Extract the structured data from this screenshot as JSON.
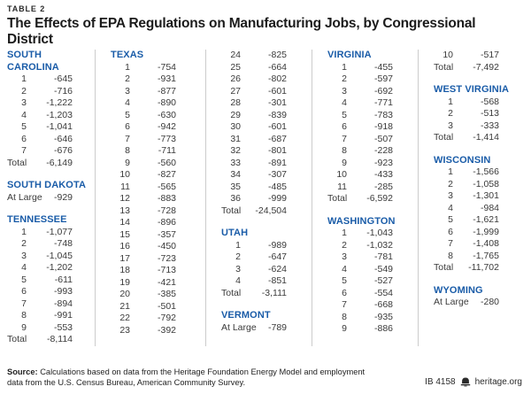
{
  "header": {
    "table_label": "TABLE 2",
    "title": "The Effects of EPA Regulations on Manufacturing Jobs, by Congressional District"
  },
  "colors": {
    "state_header_blue": "#1A5CA8",
    "body_text": "#3A3A3A",
    "divider": "#CCCCCC",
    "title_text": "#1B1B1B"
  },
  "columns": [
    {
      "groups": [
        {
          "state": "SOUTH CAROLINA",
          "rows": [
            [
              "1",
              "-645"
            ],
            [
              "2",
              "-716"
            ],
            [
              "3",
              "-1,222"
            ],
            [
              "4",
              "-1,203"
            ],
            [
              "5",
              "-1,041"
            ],
            [
              "6",
              "-646"
            ],
            [
              "7",
              "-676"
            ],
            [
              "Total",
              "-6,149"
            ]
          ]
        },
        {
          "state": "SOUTH DAKOTA",
          "rows": [
            [
              "At Large",
              "-929"
            ]
          ]
        },
        {
          "state": "TENNESSEE",
          "rows": [
            [
              "1",
              "-1,077"
            ],
            [
              "2",
              "-748"
            ],
            [
              "3",
              "-1,045"
            ],
            [
              "4",
              "-1,202"
            ],
            [
              "5",
              "-611"
            ],
            [
              "6",
              "-993"
            ],
            [
              "7",
              "-894"
            ],
            [
              "8",
              "-991"
            ],
            [
              "9",
              "-553"
            ],
            [
              "Total",
              "-8,114"
            ]
          ]
        }
      ]
    },
    {
      "groups": [
        {
          "state": "TEXAS",
          "rows": [
            [
              "1",
              "-754"
            ],
            [
              "2",
              "-931"
            ],
            [
              "3",
              "-877"
            ],
            [
              "4",
              "-890"
            ],
            [
              "5",
              "-630"
            ],
            [
              "6",
              "-942"
            ],
            [
              "7",
              "-773"
            ],
            [
              "8",
              "-711"
            ],
            [
              "9",
              "-560"
            ],
            [
              "10",
              "-827"
            ],
            [
              "11",
              "-565"
            ],
            [
              "12",
              "-883"
            ],
            [
              "13",
              "-728"
            ],
            [
              "14",
              "-896"
            ],
            [
              "15",
              "-357"
            ],
            [
              "16",
              "-450"
            ],
            [
              "17",
              "-723"
            ],
            [
              "18",
              "-713"
            ],
            [
              "19",
              "-421"
            ],
            [
              "20",
              "-385"
            ],
            [
              "21",
              "-501"
            ],
            [
              "22",
              "-792"
            ],
            [
              "23",
              "-392"
            ]
          ]
        }
      ]
    },
    {
      "groups": [
        {
          "state": null,
          "rows": [
            [
              "24",
              "-825"
            ],
            [
              "25",
              "-664"
            ],
            [
              "26",
              "-802"
            ],
            [
              "27",
              "-601"
            ],
            [
              "28",
              "-301"
            ],
            [
              "29",
              "-839"
            ],
            [
              "30",
              "-601"
            ],
            [
              "31",
              "-687"
            ],
            [
              "32",
              "-801"
            ],
            [
              "33",
              "-891"
            ],
            [
              "34",
              "-307"
            ],
            [
              "35",
              "-485"
            ],
            [
              "36",
              "-999"
            ],
            [
              "Total",
              "-24,504"
            ]
          ]
        },
        {
          "state": "UTAH",
          "rows": [
            [
              "1",
              "-989"
            ],
            [
              "2",
              "-647"
            ],
            [
              "3",
              "-624"
            ],
            [
              "4",
              "-851"
            ],
            [
              "Total",
              "-3,111"
            ]
          ]
        },
        {
          "state": "VERMONT",
          "rows": [
            [
              "At Large",
              "-789"
            ]
          ]
        }
      ]
    },
    {
      "groups": [
        {
          "state": "VIRGINIA",
          "rows": [
            [
              "1",
              "-455"
            ],
            [
              "2",
              "-597"
            ],
            [
              "3",
              "-692"
            ],
            [
              "4",
              "-771"
            ],
            [
              "5",
              "-783"
            ],
            [
              "6",
              "-918"
            ],
            [
              "7",
              "-507"
            ],
            [
              "8",
              "-228"
            ],
            [
              "9",
              "-923"
            ],
            [
              "10",
              "-433"
            ],
            [
              "11",
              "-285"
            ],
            [
              "Total",
              "-6,592"
            ]
          ]
        },
        {
          "state": "WASHINGTON",
          "rows": [
            [
              "1",
              "-1,043"
            ],
            [
              "2",
              "-1,032"
            ],
            [
              "3",
              "-781"
            ],
            [
              "4",
              "-549"
            ],
            [
              "5",
              "-527"
            ],
            [
              "6",
              "-554"
            ],
            [
              "7",
              "-668"
            ],
            [
              "8",
              "-935"
            ],
            [
              "9",
              "-886"
            ]
          ]
        }
      ]
    },
    {
      "groups": [
        {
          "state": null,
          "rows": [
            [
              "10",
              "-517"
            ],
            [
              "Total",
              "-7,492"
            ]
          ]
        },
        {
          "state": "WEST VIRGINIA",
          "rows": [
            [
              "1",
              "-568"
            ],
            [
              "2",
              "-513"
            ],
            [
              "3",
              "-333"
            ],
            [
              "Total",
              "-1,414"
            ]
          ]
        },
        {
          "state": "WISCONSIN",
          "rows": [
            [
              "1",
              "-1,566"
            ],
            [
              "2",
              "-1,058"
            ],
            [
              "3",
              "-1,301"
            ],
            [
              "4",
              "-984"
            ],
            [
              "5",
              "-1,621"
            ],
            [
              "6",
              "-1,999"
            ],
            [
              "7",
              "-1,408"
            ],
            [
              "8",
              "-1,765"
            ],
            [
              "Total",
              "-11,702"
            ]
          ]
        },
        {
          "state": "WYOMING",
          "rows": [
            [
              "At Large",
              "-280"
            ]
          ]
        }
      ]
    }
  ],
  "footer": {
    "source_label": "Source:",
    "source_text": " Calculations based on data from the Heritage Foundation Energy Model and employment data from the U.S. Census Bureau, American Community Survey.",
    "report_id": "IB 4158",
    "site": "heritage.org",
    "logo_icon": "heritage-bell-icon"
  }
}
